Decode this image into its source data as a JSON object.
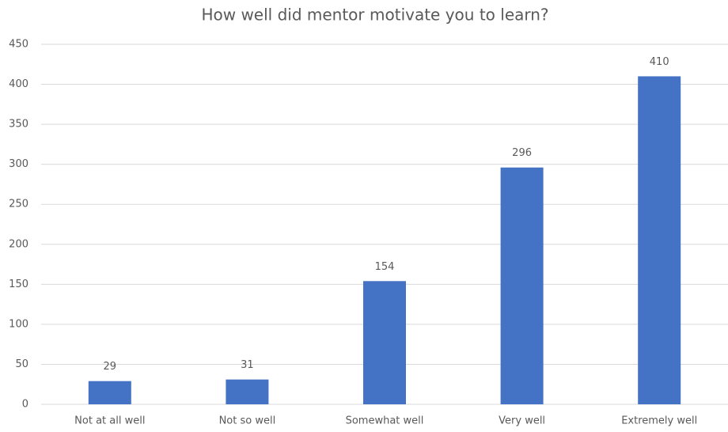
{
  "chart_data": {
    "type": "bar",
    "title": "How well did mentor motivate you to learn?",
    "categories": [
      "Not at all well",
      "Not so well",
      "Somewhat well",
      "Very well",
      "Extremely well"
    ],
    "values": [
      29,
      31,
      154,
      296,
      410
    ],
    "color": "#4472c4",
    "ylim": [
      0,
      450
    ],
    "yticks": [
      0,
      50,
      100,
      150,
      200,
      250,
      300,
      350,
      400,
      450
    ],
    "grid": true
  }
}
